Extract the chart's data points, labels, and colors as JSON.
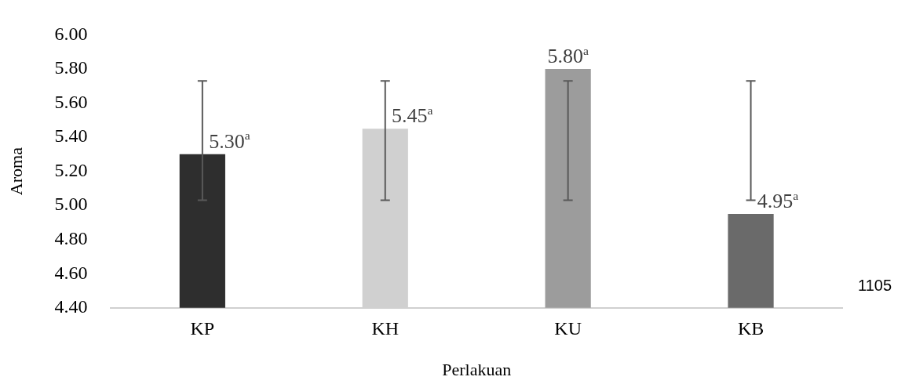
{
  "chart_data": {
    "type": "bar",
    "xlabel": "Perlakuan",
    "ylabel": "Aroma",
    "categories": [
      "KP",
      "KH",
      "KU",
      "KB"
    ],
    "values": [
      5.3,
      5.45,
      5.8,
      4.95
    ],
    "colors": [
      "#2e2e2e",
      "#d0d0d0",
      "#9c9c9c",
      "#6a6a6a"
    ],
    "errors": [
      [
        5.03,
        5.73
      ],
      [
        5.03,
        5.73
      ],
      [
        5.03,
        5.73
      ],
      [
        5.03,
        5.73
      ]
    ],
    "value_labels": [
      "5.30$^{a}$",
      "5.45$^{a}$",
      "5.80$^{a}$",
      "4.95$^{a}$"
    ],
    "ylim": [
      4.4,
      6.0
    ],
    "yticks": [
      {
        "value": 4.4,
        "label": "4.40"
      },
      {
        "value": 4.6,
        "label": "4.60"
      },
      {
        "value": 4.8,
        "label": "4.80"
      },
      {
        "value": 5,
        "label": "5.00"
      },
      {
        "value": 5.2,
        "label": "5.20"
      },
      {
        "value": 5.4,
        "label": "5.40"
      },
      {
        "value": 5.6,
        "label": "5.60"
      },
      {
        "value": 5.8,
        "label": "5.80"
      },
      {
        "value": 6,
        "label": "6.00"
      }
    ],
    "grid": false,
    "legend": false,
    "annotations": [
      "1105"
    ]
  }
}
